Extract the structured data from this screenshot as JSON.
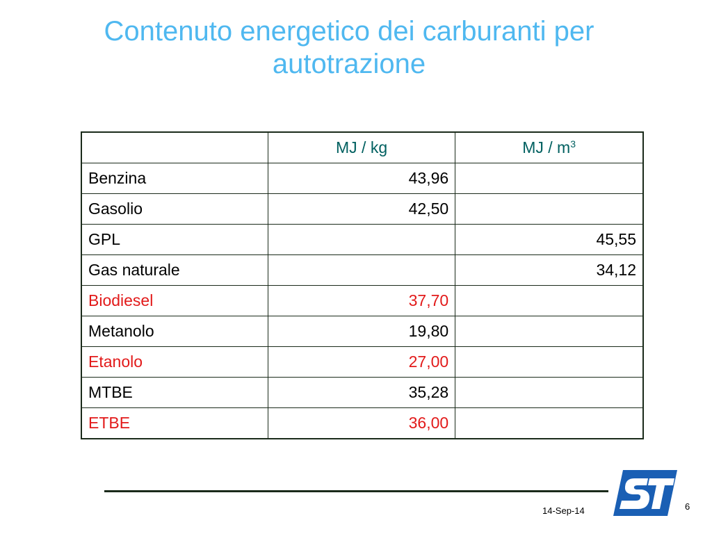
{
  "slide": {
    "title_line1": "Contenuto energetico dei carburanti per",
    "title_line2": "autotrazione"
  },
  "table": {
    "headers": [
      "",
      "MJ / kg",
      "MJ / m",
      "3"
    ],
    "rows": [
      {
        "name": "Benzina",
        "mj_kg": "43,96",
        "mj_m3": "",
        "highlight": false
      },
      {
        "name": "Gasolio",
        "mj_kg": "42,50",
        "mj_m3": "",
        "highlight": false
      },
      {
        "name": "GPL",
        "mj_kg": "",
        "mj_m3": "45,55",
        "highlight": false
      },
      {
        "name": "Gas naturale",
        "mj_kg": "",
        "mj_m3": "34,12",
        "highlight": false
      },
      {
        "name": "Biodiesel",
        "mj_kg": "37,70",
        "mj_m3": "",
        "highlight": true
      },
      {
        "name": "Metanolo",
        "mj_kg": "19,80",
        "mj_m3": "",
        "highlight": false
      },
      {
        "name": "Etanolo",
        "mj_kg": "27,00",
        "mj_m3": "",
        "highlight": true
      },
      {
        "name": "MTBE",
        "mj_kg": "35,28",
        "mj_m3": "",
        "highlight": false
      },
      {
        "name": "ETBE",
        "mj_kg": "36,00",
        "mj_m3": "",
        "highlight": true
      }
    ],
    "highlight_color": "#e21a1a",
    "header_color": "#006060"
  },
  "footer": {
    "date": "14-Sep-14",
    "page_number": "6",
    "logo_icon": "st-logo-icon"
  },
  "colors": {
    "title": "#4fb8f0",
    "logo": "#1a5fb4"
  }
}
